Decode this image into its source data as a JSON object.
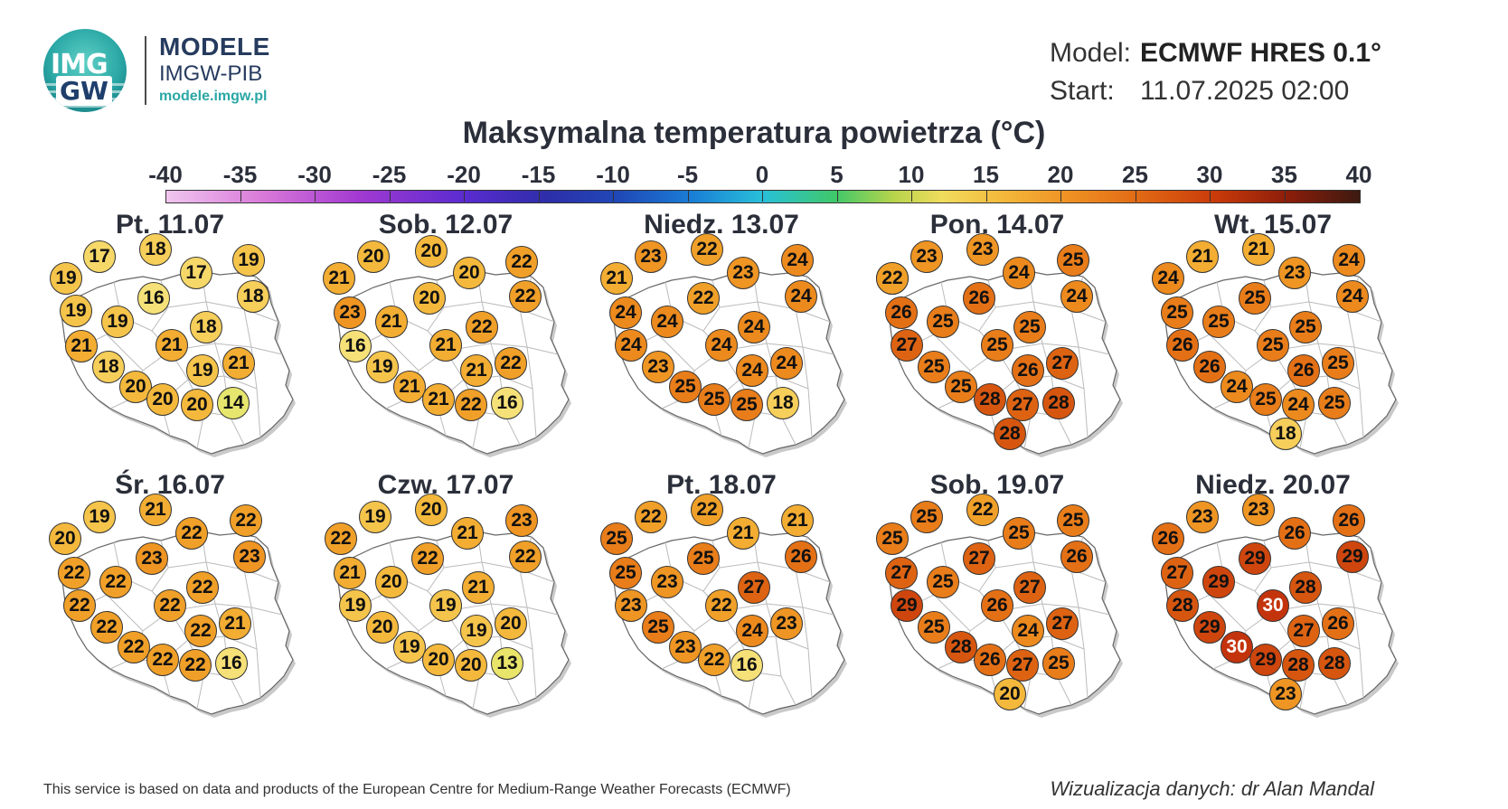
{
  "brand": {
    "name": "MODELE",
    "org": "IMGW-PIB",
    "url": "modele.imgw.pl"
  },
  "meta": {
    "model_label": "Model:",
    "model_value": "ECMWF HRES 0.1°",
    "start_label": "Start:",
    "start_value": "11.07.2025 02:00"
  },
  "title": "Maksymalna temperatura powietrza (°C)",
  "colors": {
    "title": "#2b2f3a",
    "brand": "#263b5e",
    "accent": "#2aa7a5",
    "hot": "#d2350d"
  },
  "scale": {
    "labels": [
      "-40",
      "-35",
      "-30",
      "-25",
      "-20",
      "-15",
      "-10",
      "-5",
      "0",
      "5",
      "10",
      "15",
      "20",
      "25",
      "30",
      "35",
      "40"
    ],
    "min": -40,
    "max": 40
  },
  "days": [
    {
      "date": "Pt. 11.07",
      "temps": [
        19,
        17,
        18,
        19,
        17,
        16,
        19,
        19,
        18,
        18,
        21,
        21,
        18,
        19,
        21,
        20,
        20,
        20,
        14
      ]
    },
    {
      "date": "Sob. 12.07",
      "temps": [
        21,
        20,
        20,
        22,
        20,
        22,
        20,
        23,
        22,
        21,
        16,
        19,
        21,
        21,
        22,
        21,
        21,
        22,
        16
      ]
    },
    {
      "date": "Niedz. 13.07",
      "temps": [
        21,
        23,
        22,
        24,
        23,
        24,
        22,
        24,
        24,
        24,
        24,
        23,
        24,
        24,
        24,
        25,
        25,
        25,
        18
      ]
    },
    {
      "date": "Pon. 14.07",
      "temps": [
        24,
        23,
        23,
        25,
        24,
        24,
        26,
        26,
        25,
        25,
        27,
        25,
        25,
        26,
        27,
        25,
        28,
        27,
        28,
        28,
        22
      ]
    },
    {
      "date": "Wt. 15.07",
      "temps": [
        24,
        21,
        21,
        24,
        23,
        24,
        25,
        25,
        25,
        25,
        26,
        25,
        26,
        26,
        25,
        24,
        25,
        24,
        25,
        18
      ]
    },
    {
      "date": "Śr. 16.07",
      "temps": [
        20,
        19,
        21,
        22,
        22,
        23,
        23,
        22,
        22,
        22,
        22,
        22,
        22,
        22,
        21,
        22,
        22,
        22,
        16
      ]
    },
    {
      "date": "Czw. 17.07",
      "temps": [
        22,
        19,
        20,
        23,
        21,
        22,
        22,
        21,
        20,
        21,
        19,
        19,
        20,
        19,
        20,
        19,
        20,
        20,
        13
      ]
    },
    {
      "date": "Pt. 18.07",
      "temps": [
        25,
        22,
        22,
        21,
        21,
        26,
        25,
        25,
        23,
        27,
        23,
        22,
        25,
        24,
        23,
        23,
        22,
        16
      ]
    },
    {
      "date": "Sob. 19.07",
      "temps": [
        25,
        25,
        22,
        25,
        25,
        26,
        27,
        27,
        25,
        27,
        29,
        26,
        25,
        24,
        27,
        28,
        26,
        27,
        25,
        20
      ]
    },
    {
      "date": "Niedz. 20.07",
      "temps": [
        26,
        23,
        23,
        26,
        26,
        29,
        29,
        27,
        29,
        28,
        28,
        30,
        29,
        27,
        26,
        30,
        29,
        28,
        28,
        23
      ]
    }
  ],
  "footer": {
    "source": "This service is based on data and products of the European Centre for Medium-Range Weather Forecasts (ECMWF)",
    "credit": "Wizualizacja danych: dr Alan Mandal"
  }
}
